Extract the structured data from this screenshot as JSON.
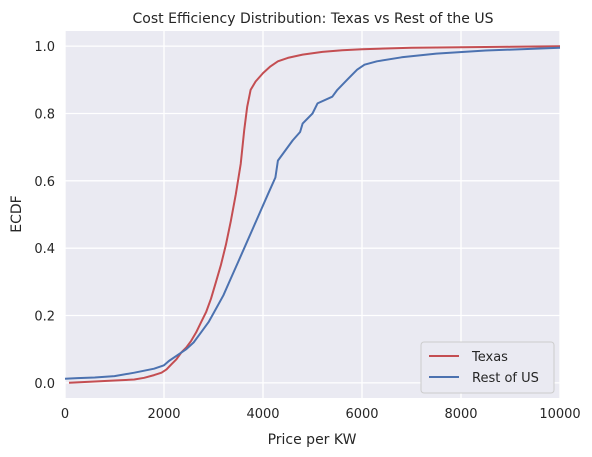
{
  "chart_data": {
    "type": "line",
    "title": "Cost Efficiency Distribution: Texas vs Rest of the US",
    "xlabel": "Price per KW",
    "ylabel": "ECDF",
    "xlim": [
      0,
      10000
    ],
    "ylim": [
      -0.045,
      1.045
    ],
    "x_ticks": [
      0,
      2000,
      4000,
      6000,
      8000,
      10000
    ],
    "x_tick_labels": [
      "0",
      "2000",
      "4000",
      "6000",
      "8000",
      "10000"
    ],
    "y_ticks": [
      0.0,
      0.2,
      0.4,
      0.6,
      0.8,
      1.0
    ],
    "y_tick_labels": [
      "0.0",
      "0.2",
      "0.4",
      "0.6",
      "0.8",
      "1.0"
    ],
    "grid": true,
    "background": "#eaeaf2",
    "legend_placement": "lower right",
    "series": [
      {
        "name": "Texas",
        "color": "#c44e52",
        "points": [
          [
            80,
            0.0
          ],
          [
            500,
            0.003
          ],
          [
            1000,
            0.007
          ],
          [
            1400,
            0.01
          ],
          [
            1600,
            0.015
          ],
          [
            1800,
            0.023
          ],
          [
            1950,
            0.03
          ],
          [
            2050,
            0.04
          ],
          [
            2150,
            0.055
          ],
          [
            2250,
            0.07
          ],
          [
            2350,
            0.09
          ],
          [
            2450,
            0.105
          ],
          [
            2550,
            0.125
          ],
          [
            2650,
            0.15
          ],
          [
            2750,
            0.18
          ],
          [
            2850,
            0.21
          ],
          [
            2950,
            0.25
          ],
          [
            3050,
            0.3
          ],
          [
            3150,
            0.35
          ],
          [
            3250,
            0.41
          ],
          [
            3350,
            0.48
          ],
          [
            3450,
            0.56
          ],
          [
            3550,
            0.65
          ],
          [
            3620,
            0.75
          ],
          [
            3680,
            0.82
          ],
          [
            3750,
            0.87
          ],
          [
            3850,
            0.895
          ],
          [
            4000,
            0.92
          ],
          [
            4150,
            0.94
          ],
          [
            4300,
            0.955
          ],
          [
            4500,
            0.965
          ],
          [
            4800,
            0.975
          ],
          [
            5200,
            0.983
          ],
          [
            5600,
            0.988
          ],
          [
            6000,
            0.991
          ],
          [
            7000,
            0.995
          ],
          [
            8000,
            0.997
          ],
          [
            9000,
            0.998
          ],
          [
            10000,
            1.0
          ]
        ]
      },
      {
        "name": "Rest of US",
        "color": "#4c72b0",
        "points": [
          [
            0,
            0.012
          ],
          [
            250,
            0.014
          ],
          [
            600,
            0.016
          ],
          [
            1000,
            0.02
          ],
          [
            1400,
            0.03
          ],
          [
            1800,
            0.042
          ],
          [
            2000,
            0.052
          ],
          [
            2100,
            0.065
          ],
          [
            2300,
            0.085
          ],
          [
            2450,
            0.1
          ],
          [
            2600,
            0.12
          ],
          [
            2750,
            0.15
          ],
          [
            2900,
            0.18
          ],
          [
            3050,
            0.22
          ],
          [
            3200,
            0.26
          ],
          [
            3350,
            0.31
          ],
          [
            3500,
            0.36
          ],
          [
            3650,
            0.41
          ],
          [
            3800,
            0.46
          ],
          [
            3950,
            0.51
          ],
          [
            4100,
            0.56
          ],
          [
            4250,
            0.61
          ],
          [
            4300,
            0.66
          ],
          [
            4450,
            0.69
          ],
          [
            4600,
            0.72
          ],
          [
            4750,
            0.745
          ],
          [
            4800,
            0.77
          ],
          [
            5000,
            0.8
          ],
          [
            5100,
            0.83
          ],
          [
            5400,
            0.85
          ],
          [
            5500,
            0.87
          ],
          [
            5700,
            0.9
          ],
          [
            5900,
            0.93
          ],
          [
            6050,
            0.945
          ],
          [
            6300,
            0.955
          ],
          [
            6800,
            0.967
          ],
          [
            7500,
            0.978
          ],
          [
            8500,
            0.987
          ],
          [
            10000,
            0.995
          ]
        ]
      }
    ]
  }
}
